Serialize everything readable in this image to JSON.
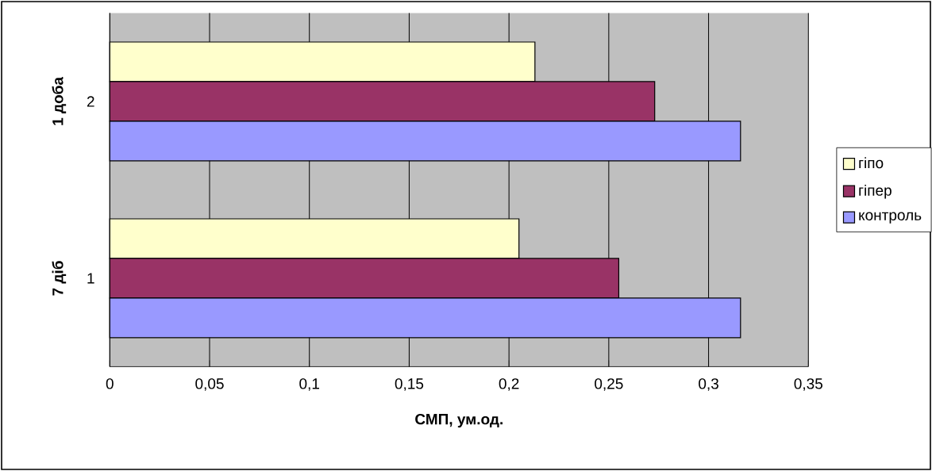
{
  "chart_data": {
    "type": "bar",
    "orientation": "horizontal",
    "xlabel": "СМП, ум.од.",
    "categories": [
      "2",
      "1"
    ],
    "series": [
      {
        "name": "гіпо",
        "color": "#ffffcc",
        "values": [
          0.213,
          0.205
        ]
      },
      {
        "name": "гіпер",
        "color": "#993366",
        "values": [
          0.273,
          0.255
        ]
      },
      {
        "name": "контроль",
        "color": "#9999ff",
        "values": [
          0.316,
          0.316
        ]
      }
    ],
    "xlim": [
      0,
      0.35
    ],
    "xticks": [
      0,
      {
        "value": 0.05,
        "label": "0,05"
      },
      {
        "value": 0.1,
        "label": "0,1"
      },
      {
        "value": 0.15,
        "label": "0,15"
      },
      {
        "value": 0.2,
        "label": "0,2"
      },
      {
        "value": 0.25,
        "label": "0,25"
      },
      {
        "value": 0.3,
        "label": "0,3"
      },
      {
        "value": 0.35,
        "label": "0,35"
      }
    ],
    "annotations": [
      "1 доба",
      "7 діб"
    ],
    "grid": "x",
    "legend": "right"
  }
}
